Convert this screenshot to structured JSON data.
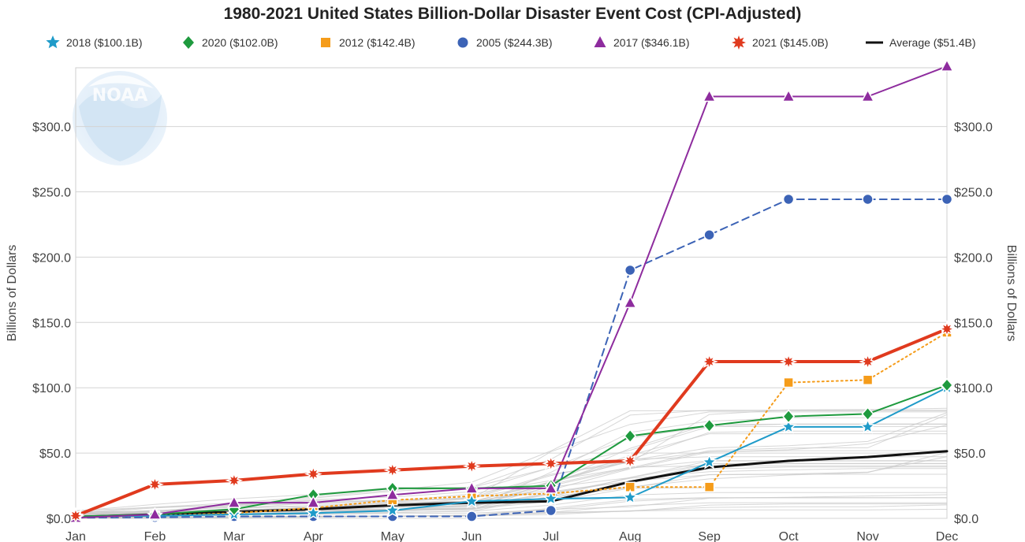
{
  "chart_data": {
    "type": "line",
    "title": "1980-2021 United States Billion-Dollar Disaster Event Cost (CPI-Adjusted)",
    "ylabel_left": "Billions of Dollars",
    "ylabel_right": "Billions of Dollars",
    "ylim": [
      0,
      345
    ],
    "grid": true,
    "legend_position": "top",
    "categories": [
      "Jan",
      "Feb",
      "Mar",
      "Apr",
      "May",
      "Jun",
      "Jul",
      "Aug",
      "Sep",
      "Oct",
      "Nov",
      "Dec"
    ],
    "y_ticks": [
      {
        "value": 0,
        "label": "$0.0"
      },
      {
        "value": 50,
        "label": "$50.0"
      },
      {
        "value": 100,
        "label": "$100.0"
      },
      {
        "value": 150,
        "label": "$150.0"
      },
      {
        "value": 200,
        "label": "$200.0"
      },
      {
        "value": 250,
        "label": "$250.0"
      },
      {
        "value": 300,
        "label": "$300.0"
      }
    ],
    "series": [
      {
        "name": "2018 ($100.1B)",
        "color": "#1f9bc9",
        "marker": "star",
        "dash": "solid",
        "values": [
          1.5,
          2,
          3,
          4,
          6,
          13,
          15,
          16,
          43,
          70,
          70,
          100.1
        ]
      },
      {
        "name": "2020 ($102.0B)",
        "color": "#1e9a3e",
        "marker": "diamond",
        "dash": "solid",
        "values": [
          1.5,
          3,
          7,
          18,
          23,
          23,
          25,
          63,
          71,
          78,
          80,
          102.0
        ]
      },
      {
        "name": "2012 ($142.4B)",
        "color": "#f59c1a",
        "marker": "square",
        "dash": "dotted",
        "values": [
          1,
          2,
          4,
          8,
          14,
          17,
          19,
          24,
          24,
          104,
          106,
          142.4
        ]
      },
      {
        "name": "2005 ($244.3B)",
        "color": "#3c63b6",
        "marker": "circle",
        "dash": "dashed",
        "values": [
          0.5,
          0.8,
          1.5,
          1.5,
          1.5,
          1.5,
          6,
          190,
          217,
          244.3,
          244.3,
          244.3
        ]
      },
      {
        "name": "2017 ($346.1B)",
        "color": "#8e2c9e",
        "marker": "triangle",
        "dash": "solid",
        "values": [
          0.5,
          3,
          12,
          12,
          18,
          23,
          23,
          165,
          323,
          323,
          323,
          346.1
        ]
      },
      {
        "name": "2021 ($145.0B)",
        "color": "#e03a1e",
        "marker": "burst",
        "dash": "solid",
        "values": [
          2,
          26,
          29,
          34,
          37,
          40,
          42,
          44,
          120,
          120,
          120,
          145.0
        ]
      },
      {
        "name": "Average ($51.4B)",
        "color": "#111111",
        "marker": "none",
        "dash": "solid",
        "values": [
          1,
          3,
          5,
          7,
          10,
          12,
          13,
          28,
          39,
          44,
          47,
          51.4
        ]
      }
    ]
  }
}
